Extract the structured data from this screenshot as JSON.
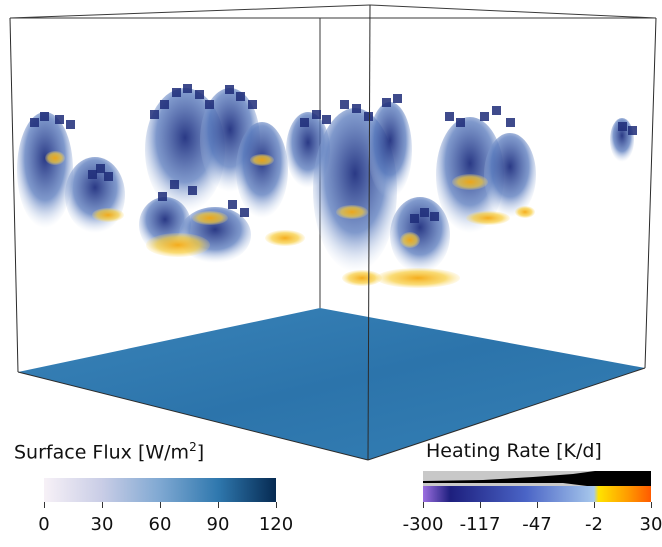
{
  "scene": {
    "box_color": "#2b2b2b",
    "surface_color": "#2f78ae",
    "cloud_dark": "#1d2c78",
    "cloud_mid": "#5d7fc0",
    "cloud_light": "#b9c9e6",
    "cloud_warm": "#f5b21e",
    "cloud_hot": "#f07f10"
  },
  "surface_flux_legend": {
    "title_prefix": "Surface Flux [W/m",
    "title_sup": "2",
    "title_suffix": "]",
    "ticks": [
      "0",
      "30",
      "60",
      "90",
      "120"
    ],
    "colors": [
      "#f7f1f7",
      "#c9cde6",
      "#7fa8d2",
      "#2f78ae",
      "#062a52"
    ]
  },
  "heating_rate_legend": {
    "title": "Heating Rate [K/d]",
    "ticks": [
      "-300",
      "-117",
      "-47",
      "-2",
      "30"
    ],
    "colors": [
      "#9c6fe0",
      "#1d1f7e",
      "#4a64c6",
      "#a7c8ec",
      "#ffe300",
      "#ff9a00",
      "#ff5a00"
    ]
  }
}
